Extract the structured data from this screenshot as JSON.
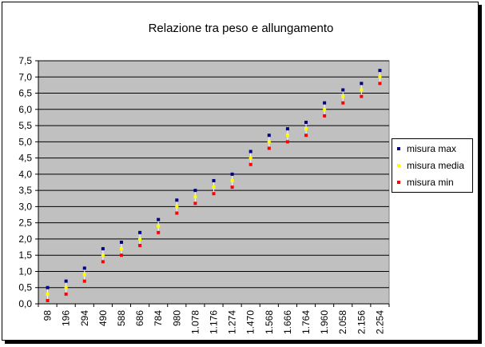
{
  "chart_data": {
    "type": "scatter",
    "title": "Relazione tra peso e allungamento",
    "xlabel": "",
    "ylabel": "",
    "categories": [
      "98",
      "196",
      "294",
      "490",
      "588",
      "686",
      "784",
      "980",
      "1.078",
      "1.176",
      "1.274",
      "1.470",
      "1.568",
      "1.666",
      "1.764",
      "1.960",
      "2.058",
      "2.156",
      "2.254"
    ],
    "y_ticks": [
      "0,0",
      "0,5",
      "1,0",
      "1,5",
      "2,0",
      "2,5",
      "3,0",
      "3,5",
      "4,0",
      "4,5",
      "5,0",
      "5,5",
      "6,0",
      "6,5",
      "7,0",
      "7,5"
    ],
    "ylim": [
      0,
      7.5
    ],
    "grid": true,
    "legend_position": "right",
    "plot_background": "#c0c0c0",
    "series": [
      {
        "name": "misura max",
        "color": "#000080",
        "values": [
          0.5,
          0.7,
          1.1,
          1.7,
          1.9,
          2.2,
          2.6,
          3.2,
          3.5,
          3.8,
          4.0,
          4.7,
          5.2,
          5.4,
          5.6,
          6.2,
          6.6,
          6.8,
          7.2
        ]
      },
      {
        "name": "misura media",
        "color": "#ffff00",
        "values": [
          0.3,
          0.5,
          0.9,
          1.5,
          1.7,
          2.0,
          2.4,
          3.0,
          3.3,
          3.6,
          3.8,
          4.5,
          5.0,
          5.2,
          5.4,
          6.0,
          6.4,
          6.6,
          7.0
        ]
      },
      {
        "name": "misura min",
        "color": "#ff0000",
        "values": [
          0.1,
          0.3,
          0.7,
          1.3,
          1.5,
          1.8,
          2.2,
          2.8,
          3.1,
          3.4,
          3.6,
          4.3,
          4.8,
          5.0,
          5.2,
          5.8,
          6.2,
          6.4,
          6.8
        ]
      }
    ]
  }
}
